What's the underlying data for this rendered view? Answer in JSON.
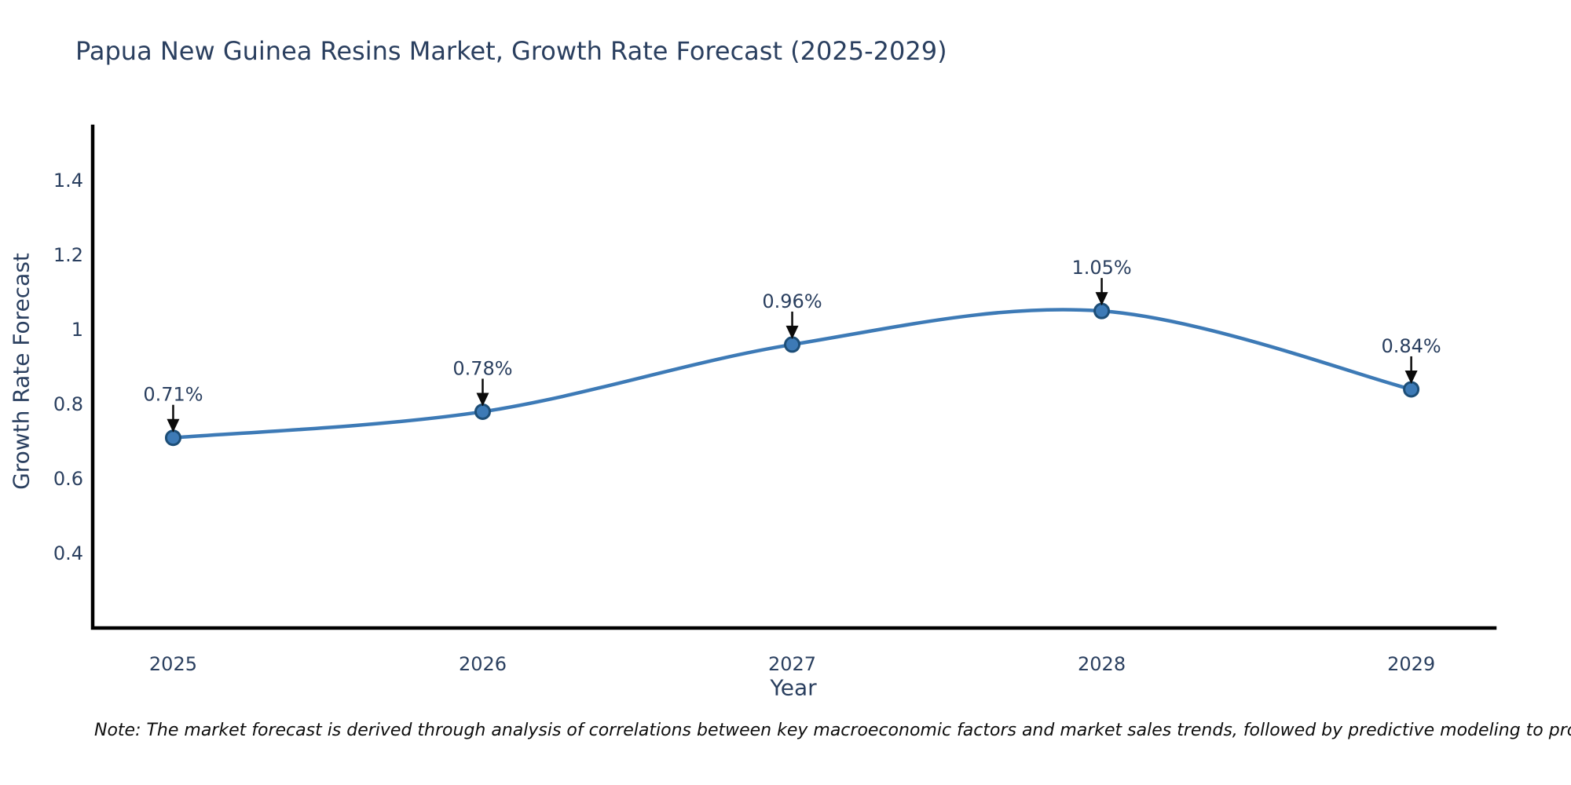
{
  "title": "Papua New Guinea Resins Market, Growth Rate Forecast (2025-2029)",
  "note": "Note: The market forecast is derived through analysis of correlations between key macroeconomic factors and market sales trends, followed by predictive modeling to project future sales",
  "chart_data": {
    "type": "line",
    "line_shape": "spline",
    "title": "Papua New Guinea Resins Market, Growth Rate Forecast (2025-2029)",
    "xlabel": "Year",
    "ylabel": "Growth Rate Forecast",
    "x": [
      2025,
      2026,
      2027,
      2028,
      2029
    ],
    "values": [
      0.71,
      0.78,
      0.96,
      1.05,
      0.84
    ],
    "point_labels": [
      "0.71%",
      "0.78%",
      "0.96%",
      "1.05%",
      "0.84%"
    ],
    "xticks": [
      2025,
      2026,
      2027,
      2028,
      2029
    ],
    "xtick_labels": [
      "2025",
      "2026",
      "2027",
      "2028",
      "2029"
    ],
    "yticks": [
      0.4,
      0.6,
      0.8,
      1.0,
      1.2,
      1.4
    ],
    "ytick_labels": [
      "0.4",
      "0.6",
      "0.8",
      "1",
      "1.2",
      "1.4"
    ],
    "xlim": [
      2024.74,
      2029.27
    ],
    "ylim": [
      0.2,
      1.545
    ],
    "grid": false,
    "legend": null,
    "annotations_have_arrows": true
  },
  "colors": {
    "line": "#3d7ab6",
    "marker_fill": "#3d7ab6",
    "marker_edge": "#1d4e77",
    "axis": "#000000",
    "text": "#2a3f5f",
    "arrow": "#0a0a0a",
    "background": "#ffffff"
  }
}
